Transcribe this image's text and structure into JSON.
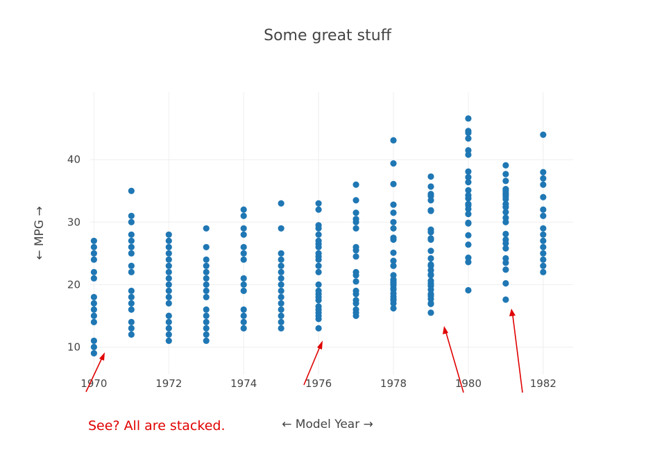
{
  "chart_data": {
    "type": "scatter",
    "title": "Some great stuff",
    "xlabel": "← Model Year →",
    "ylabel": "← MPG →",
    "xlim": [
      1969.9,
      1982.8
    ],
    "ylim": [
      5.6,
      50.8
    ],
    "x_ticks": [
      1970,
      1972,
      1974,
      1976,
      1978,
      1980,
      1982
    ],
    "y_ticks": [
      10,
      20,
      30,
      40
    ],
    "grid": true,
    "marker_color": "#1f77b4",
    "series": [
      {
        "points": [
          {
            "x": 1970,
            "y": 27
          },
          {
            "x": 1970,
            "y": 26
          },
          {
            "x": 1970,
            "y": 25
          },
          {
            "x": 1970,
            "y": 24
          },
          {
            "x": 1970,
            "y": 22
          },
          {
            "x": 1970,
            "y": 21
          },
          {
            "x": 1970,
            "y": 18
          },
          {
            "x": 1970,
            "y": 17
          },
          {
            "x": 1970,
            "y": 16
          },
          {
            "x": 1970,
            "y": 15
          },
          {
            "x": 1970,
            "y": 14
          },
          {
            "x": 1970,
            "y": 11
          },
          {
            "x": 1970,
            "y": 10
          },
          {
            "x": 1970,
            "y": 9
          },
          {
            "x": 1971,
            "y": 35
          },
          {
            "x": 1971,
            "y": 31
          },
          {
            "x": 1971,
            "y": 30
          },
          {
            "x": 1971,
            "y": 28
          },
          {
            "x": 1971,
            "y": 27
          },
          {
            "x": 1971,
            "y": 26
          },
          {
            "x": 1971,
            "y": 25
          },
          {
            "x": 1971,
            "y": 23
          },
          {
            "x": 1971,
            "y": 22
          },
          {
            "x": 1971,
            "y": 19
          },
          {
            "x": 1971,
            "y": 18
          },
          {
            "x": 1971,
            "y": 17
          },
          {
            "x": 1971,
            "y": 16
          },
          {
            "x": 1971,
            "y": 14
          },
          {
            "x": 1971,
            "y": 13
          },
          {
            "x": 1971,
            "y": 12
          },
          {
            "x": 1972,
            "y": 28
          },
          {
            "x": 1972,
            "y": 27
          },
          {
            "x": 1972,
            "y": 26
          },
          {
            "x": 1972,
            "y": 25
          },
          {
            "x": 1972,
            "y": 24
          },
          {
            "x": 1972,
            "y": 23
          },
          {
            "x": 1972,
            "y": 22
          },
          {
            "x": 1972,
            "y": 21
          },
          {
            "x": 1972,
            "y": 20
          },
          {
            "x": 1972,
            "y": 19
          },
          {
            "x": 1972,
            "y": 18
          },
          {
            "x": 1972,
            "y": 17
          },
          {
            "x": 1972,
            "y": 15
          },
          {
            "x": 1972,
            "y": 14
          },
          {
            "x": 1972,
            "y": 13
          },
          {
            "x": 1972,
            "y": 12
          },
          {
            "x": 1972,
            "y": 11
          },
          {
            "x": 1973,
            "y": 29
          },
          {
            "x": 1973,
            "y": 26
          },
          {
            "x": 1973,
            "y": 24
          },
          {
            "x": 1973,
            "y": 23
          },
          {
            "x": 1973,
            "y": 22
          },
          {
            "x": 1973,
            "y": 21
          },
          {
            "x": 1973,
            "y": 20
          },
          {
            "x": 1973,
            "y": 19
          },
          {
            "x": 1973,
            "y": 18
          },
          {
            "x": 1973,
            "y": 16
          },
          {
            "x": 1973,
            "y": 15
          },
          {
            "x": 1973,
            "y": 14
          },
          {
            "x": 1973,
            "y": 13
          },
          {
            "x": 1973,
            "y": 12
          },
          {
            "x": 1973,
            "y": 11
          },
          {
            "x": 1974,
            "y": 32
          },
          {
            "x": 1974,
            "y": 31
          },
          {
            "x": 1974,
            "y": 29
          },
          {
            "x": 1974,
            "y": 28
          },
          {
            "x": 1974,
            "y": 26
          },
          {
            "x": 1974,
            "y": 25
          },
          {
            "x": 1974,
            "y": 24
          },
          {
            "x": 1974,
            "y": 21
          },
          {
            "x": 1974,
            "y": 20
          },
          {
            "x": 1974,
            "y": 19
          },
          {
            "x": 1974,
            "y": 16
          },
          {
            "x": 1974,
            "y": 15
          },
          {
            "x": 1974,
            "y": 14
          },
          {
            "x": 1974,
            "y": 13
          },
          {
            "x": 1975,
            "y": 33
          },
          {
            "x": 1975,
            "y": 29
          },
          {
            "x": 1975,
            "y": 25
          },
          {
            "x": 1975,
            "y": 24
          },
          {
            "x": 1975,
            "y": 23
          },
          {
            "x": 1975,
            "y": 22
          },
          {
            "x": 1975,
            "y": 21
          },
          {
            "x": 1975,
            "y": 20
          },
          {
            "x": 1975,
            "y": 19
          },
          {
            "x": 1975,
            "y": 18
          },
          {
            "x": 1975,
            "y": 17
          },
          {
            "x": 1975,
            "y": 16
          },
          {
            "x": 1975,
            "y": 15
          },
          {
            "x": 1975,
            "y": 14
          },
          {
            "x": 1975,
            "y": 13
          },
          {
            "x": 1976,
            "y": 33
          },
          {
            "x": 1976,
            "y": 32
          },
          {
            "x": 1976,
            "y": 29.5
          },
          {
            "x": 1976,
            "y": 29
          },
          {
            "x": 1976,
            "y": 28
          },
          {
            "x": 1976,
            "y": 27
          },
          {
            "x": 1976,
            "y": 26.5
          },
          {
            "x": 1976,
            "y": 26
          },
          {
            "x": 1976,
            "y": 25
          },
          {
            "x": 1976,
            "y": 24.5
          },
          {
            "x": 1976,
            "y": 24
          },
          {
            "x": 1976,
            "y": 23
          },
          {
            "x": 1976,
            "y": 22
          },
          {
            "x": 1976,
            "y": 20
          },
          {
            "x": 1976,
            "y": 19
          },
          {
            "x": 1976,
            "y": 18.5
          },
          {
            "x": 1976,
            "y": 18
          },
          {
            "x": 1976,
            "y": 17.5
          },
          {
            "x": 1976,
            "y": 16.5
          },
          {
            "x": 1976,
            "y": 16
          },
          {
            "x": 1976,
            "y": 15.5
          },
          {
            "x": 1976,
            "y": 15
          },
          {
            "x": 1976,
            "y": 14.5
          },
          {
            "x": 1976,
            "y": 13
          },
          {
            "x": 1977,
            "y": 36
          },
          {
            "x": 1977,
            "y": 33.5
          },
          {
            "x": 1977,
            "y": 31.5
          },
          {
            "x": 1977,
            "y": 30.5
          },
          {
            "x": 1977,
            "y": 30
          },
          {
            "x": 1977,
            "y": 29
          },
          {
            "x": 1977,
            "y": 26
          },
          {
            "x": 1977,
            "y": 25.5
          },
          {
            "x": 1977,
            "y": 24.5
          },
          {
            "x": 1977,
            "y": 22
          },
          {
            "x": 1977,
            "y": 21.5
          },
          {
            "x": 1977,
            "y": 20.5
          },
          {
            "x": 1977,
            "y": 19
          },
          {
            "x": 1977,
            "y": 18.5
          },
          {
            "x": 1977,
            "y": 17.5
          },
          {
            "x": 1977,
            "y": 17
          },
          {
            "x": 1977,
            "y": 16
          },
          {
            "x": 1977,
            "y": 15.5
          },
          {
            "x": 1977,
            "y": 15
          },
          {
            "x": 1978,
            "y": 43.1
          },
          {
            "x": 1978,
            "y": 39.4
          },
          {
            "x": 1978,
            "y": 36.1
          },
          {
            "x": 1978,
            "y": 32.8
          },
          {
            "x": 1978,
            "y": 31.5
          },
          {
            "x": 1978,
            "y": 30
          },
          {
            "x": 1978,
            "y": 29
          },
          {
            "x": 1978,
            "y": 27.5
          },
          {
            "x": 1978,
            "y": 27.2
          },
          {
            "x": 1978,
            "y": 25.1
          },
          {
            "x": 1978,
            "y": 23.8
          },
          {
            "x": 1978,
            "y": 23
          },
          {
            "x": 1978,
            "y": 21.5
          },
          {
            "x": 1978,
            "y": 20.8
          },
          {
            "x": 1978,
            "y": 20.6
          },
          {
            "x": 1978,
            "y": 20.3
          },
          {
            "x": 1978,
            "y": 20.2
          },
          {
            "x": 1978,
            "y": 19.9
          },
          {
            "x": 1978,
            "y": 19.4
          },
          {
            "x": 1978,
            "y": 19.2
          },
          {
            "x": 1978,
            "y": 18.6
          },
          {
            "x": 1978,
            "y": 18.1
          },
          {
            "x": 1978,
            "y": 17.7
          },
          {
            "x": 1978,
            "y": 17.5
          },
          {
            "x": 1978,
            "y": 17
          },
          {
            "x": 1978,
            "y": 16.2
          },
          {
            "x": 1979,
            "y": 37.3
          },
          {
            "x": 1979,
            "y": 35.7
          },
          {
            "x": 1979,
            "y": 34.5
          },
          {
            "x": 1979,
            "y": 34.2
          },
          {
            "x": 1979,
            "y": 33.5
          },
          {
            "x": 1979,
            "y": 31.9
          },
          {
            "x": 1979,
            "y": 31.8
          },
          {
            "x": 1979,
            "y": 28.8
          },
          {
            "x": 1979,
            "y": 28.4
          },
          {
            "x": 1979,
            "y": 27.4
          },
          {
            "x": 1979,
            "y": 27.2
          },
          {
            "x": 1979,
            "y": 25.4
          },
          {
            "x": 1979,
            "y": 24.2
          },
          {
            "x": 1979,
            "y": 23.2
          },
          {
            "x": 1979,
            "y": 23
          },
          {
            "x": 1979,
            "y": 22.3
          },
          {
            "x": 1979,
            "y": 21.6
          },
          {
            "x": 1979,
            "y": 21.5
          },
          {
            "x": 1979,
            "y": 20.6
          },
          {
            "x": 1979,
            "y": 20.2
          },
          {
            "x": 1979,
            "y": 19.8
          },
          {
            "x": 1979,
            "y": 19.2
          },
          {
            "x": 1979,
            "y": 18.5
          },
          {
            "x": 1979,
            "y": 18.2
          },
          {
            "x": 1979,
            "y": 17.7
          },
          {
            "x": 1979,
            "y": 17
          },
          {
            "x": 1979,
            "y": 16.9
          },
          {
            "x": 1979,
            "y": 15.5
          },
          {
            "x": 1980,
            "y": 46.6
          },
          {
            "x": 1980,
            "y": 44.6
          },
          {
            "x": 1980,
            "y": 44.3
          },
          {
            "x": 1980,
            "y": 43.4
          },
          {
            "x": 1980,
            "y": 41.5
          },
          {
            "x": 1980,
            "y": 40.8
          },
          {
            "x": 1980,
            "y": 38.1
          },
          {
            "x": 1980,
            "y": 37.2
          },
          {
            "x": 1980,
            "y": 36.4
          },
          {
            "x": 1980,
            "y": 35.1
          },
          {
            "x": 1980,
            "y": 34.3
          },
          {
            "x": 1980,
            "y": 33.8
          },
          {
            "x": 1980,
            "y": 32.9
          },
          {
            "x": 1980,
            "y": 32.7
          },
          {
            "x": 1980,
            "y": 32.1
          },
          {
            "x": 1980,
            "y": 31.3
          },
          {
            "x": 1980,
            "y": 29.9
          },
          {
            "x": 1980,
            "y": 29.8
          },
          {
            "x": 1980,
            "y": 27.9
          },
          {
            "x": 1980,
            "y": 26.4
          },
          {
            "x": 1980,
            "y": 24.3
          },
          {
            "x": 1980,
            "y": 23.6
          },
          {
            "x": 1980,
            "y": 19.1
          },
          {
            "x": 1981,
            "y": 39.1
          },
          {
            "x": 1981,
            "y": 37.7
          },
          {
            "x": 1981,
            "y": 36.6
          },
          {
            "x": 1981,
            "y": 35.3
          },
          {
            "x": 1981,
            "y": 35
          },
          {
            "x": 1981,
            "y": 34.7
          },
          {
            "x": 1981,
            "y": 34.4
          },
          {
            "x": 1981,
            "y": 34.1
          },
          {
            "x": 1981,
            "y": 33.7
          },
          {
            "x": 1981,
            "y": 32.9
          },
          {
            "x": 1981,
            "y": 32.4
          },
          {
            "x": 1981,
            "y": 31.6
          },
          {
            "x": 1981,
            "y": 30.7
          },
          {
            "x": 1981,
            "y": 30
          },
          {
            "x": 1981,
            "y": 28.1
          },
          {
            "x": 1981,
            "y": 27.2
          },
          {
            "x": 1981,
            "y": 26.6
          },
          {
            "x": 1981,
            "y": 25.8
          },
          {
            "x": 1981,
            "y": 24.2
          },
          {
            "x": 1981,
            "y": 23.5
          },
          {
            "x": 1981,
            "y": 22.4
          },
          {
            "x": 1981,
            "y": 20.2
          },
          {
            "x": 1981,
            "y": 17.6
          },
          {
            "x": 1982,
            "y": 44
          },
          {
            "x": 1982,
            "y": 38
          },
          {
            "x": 1982,
            "y": 37
          },
          {
            "x": 1982,
            "y": 36
          },
          {
            "x": 1982,
            "y": 34
          },
          {
            "x": 1982,
            "y": 32
          },
          {
            "x": 1982,
            "y": 31
          },
          {
            "x": 1982,
            "y": 29
          },
          {
            "x": 1982,
            "y": 28
          },
          {
            "x": 1982,
            "y": 27
          },
          {
            "x": 1982,
            "y": 26
          },
          {
            "x": 1982,
            "y": 25
          },
          {
            "x": 1982,
            "y": 24
          },
          {
            "x": 1982,
            "y": 23
          },
          {
            "x": 1982,
            "y": 22
          }
        ]
      }
    ],
    "annotations": [
      {
        "text": "See? All are stacked.",
        "color": "#e00000"
      }
    ]
  }
}
